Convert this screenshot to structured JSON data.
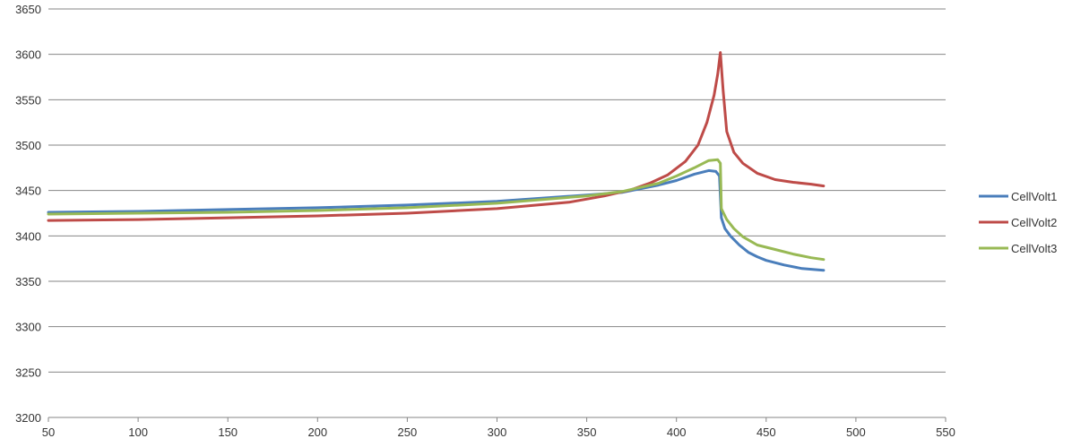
{
  "chart_data": {
    "type": "line",
    "title": "",
    "xlabel": "",
    "ylabel": "",
    "xlim": [
      50,
      550
    ],
    "ylim": [
      3200,
      3650
    ],
    "x_ticks": [
      50,
      100,
      150,
      200,
      250,
      300,
      350,
      400,
      450,
      500,
      550
    ],
    "y_ticks": [
      3200,
      3250,
      3300,
      3350,
      3400,
      3450,
      3500,
      3550,
      3600,
      3650
    ],
    "x_tick_labels": [
      "50",
      "100",
      "150",
      "200",
      "250",
      "300",
      "350",
      "400",
      "450",
      "500",
      "550"
    ],
    "y_tick_labels": [
      "3200",
      "3250",
      "3300",
      "3350",
      "3400",
      "3450",
      "3500",
      "3550",
      "3600",
      "3650"
    ],
    "grid": "horizontal",
    "legend": "right",
    "series": [
      {
        "name": "CellVolt1",
        "color": "#4a7ebb",
        "points": [
          [
            50,
            3426
          ],
          [
            100,
            3427
          ],
          [
            150,
            3429
          ],
          [
            200,
            3431
          ],
          [
            250,
            3434
          ],
          [
            300,
            3438
          ],
          [
            350,
            3445
          ],
          [
            370,
            3448
          ],
          [
            390,
            3456
          ],
          [
            400,
            3461
          ],
          [
            410,
            3468
          ],
          [
            418,
            3472
          ],
          [
            422,
            3471
          ],
          [
            424,
            3466
          ],
          [
            425,
            3420
          ],
          [
            427,
            3408
          ],
          [
            430,
            3400
          ],
          [
            435,
            3390
          ],
          [
            440,
            3382
          ],
          [
            445,
            3377
          ],
          [
            450,
            3373
          ],
          [
            460,
            3368
          ],
          [
            470,
            3364
          ],
          [
            482,
            3362
          ]
        ]
      },
      {
        "name": "CellVolt2",
        "color": "#be4b48",
        "points": [
          [
            50,
            3417
          ],
          [
            100,
            3418
          ],
          [
            150,
            3420
          ],
          [
            200,
            3422
          ],
          [
            250,
            3425
          ],
          [
            300,
            3430
          ],
          [
            340,
            3437
          ],
          [
            360,
            3444
          ],
          [
            375,
            3451
          ],
          [
            385,
            3458
          ],
          [
            395,
            3467
          ],
          [
            405,
            3482
          ],
          [
            412,
            3500
          ],
          [
            417,
            3525
          ],
          [
            421,
            3555
          ],
          [
            423,
            3578
          ],
          [
            424.5,
            3602
          ],
          [
            426,
            3560
          ],
          [
            428,
            3515
          ],
          [
            432,
            3492
          ],
          [
            437,
            3480
          ],
          [
            445,
            3469
          ],
          [
            455,
            3462
          ],
          [
            465,
            3459
          ],
          [
            475,
            3457
          ],
          [
            482,
            3455
          ]
        ]
      },
      {
        "name": "CellVolt3",
        "color": "#98b954",
        "points": [
          [
            50,
            3424
          ],
          [
            100,
            3425
          ],
          [
            150,
            3426
          ],
          [
            200,
            3428
          ],
          [
            250,
            3431
          ],
          [
            300,
            3436
          ],
          [
            350,
            3444
          ],
          [
            370,
            3449
          ],
          [
            390,
            3458
          ],
          [
            400,
            3466
          ],
          [
            410,
            3475
          ],
          [
            418,
            3483
          ],
          [
            423,
            3484
          ],
          [
            424.5,
            3480
          ],
          [
            425,
            3430
          ],
          [
            428,
            3418
          ],
          [
            432,
            3408
          ],
          [
            437,
            3399
          ],
          [
            445,
            3390
          ],
          [
            455,
            3385
          ],
          [
            465,
            3380
          ],
          [
            475,
            3376
          ],
          [
            482,
            3374
          ]
        ]
      }
    ]
  }
}
